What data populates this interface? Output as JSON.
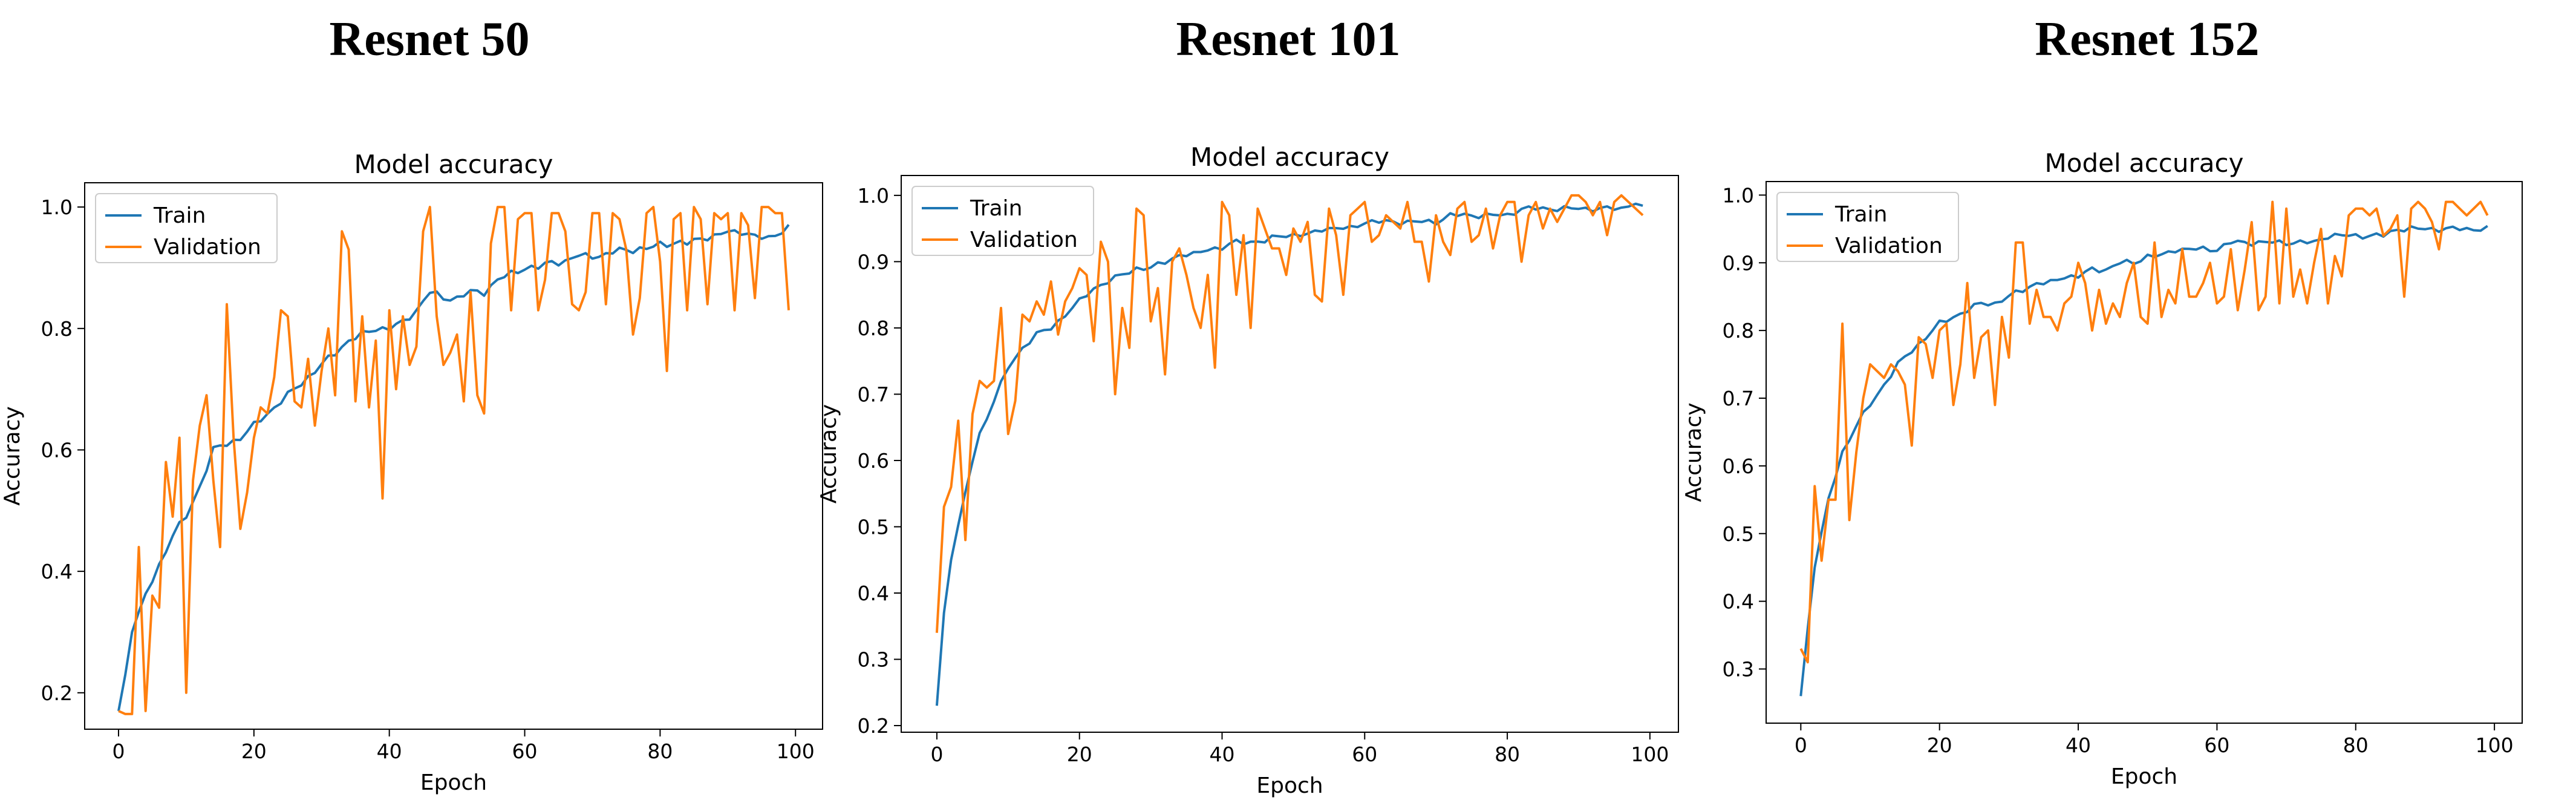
{
  "colors": {
    "train": "#1f77b4",
    "validation": "#ff7f0e"
  },
  "chart_data": [
    {
      "type": "line",
      "heading": "Resnet 50",
      "title": "Model accuracy",
      "xlabel": "Epoch",
      "ylabel": "Accuracy",
      "xlim": [
        -5,
        104
      ],
      "ylim": [
        0.14,
        1.04
      ],
      "xticks": [
        0,
        20,
        40,
        60,
        80,
        100
      ],
      "yticks": [
        0.2,
        0.4,
        0.6,
        0.8,
        1.0
      ],
      "ytick_labels": [
        "0.2",
        "0.4",
        "0.6",
        "0.8",
        "1.0"
      ],
      "legend": "upper-left",
      "series": [
        {
          "name": "Train",
          "anchors": [
            [
              0,
              0.17
            ],
            [
              1,
              0.23
            ],
            [
              2,
              0.3
            ],
            [
              4,
              0.36
            ],
            [
              6,
              0.41
            ],
            [
              8,
              0.46
            ],
            [
              10,
              0.49
            ],
            [
              12,
              0.54
            ],
            [
              14,
              0.6
            ],
            [
              16,
              0.61
            ],
            [
              18,
              0.62
            ],
            [
              20,
              0.64
            ],
            [
              22,
              0.66
            ],
            [
              24,
              0.68
            ],
            [
              26,
              0.7
            ],
            [
              28,
              0.72
            ],
            [
              30,
              0.74
            ],
            [
              32,
              0.76
            ],
            [
              34,
              0.78
            ],
            [
              36,
              0.79
            ],
            [
              38,
              0.8
            ],
            [
              40,
              0.8
            ],
            [
              42,
              0.81
            ],
            [
              44,
              0.83
            ],
            [
              46,
              0.86
            ],
            [
              48,
              0.85
            ],
            [
              50,
              0.85
            ],
            [
              52,
              0.86
            ],
            [
              54,
              0.86
            ],
            [
              56,
              0.88
            ],
            [
              58,
              0.89
            ],
            [
              60,
              0.9
            ],
            [
              62,
              0.9
            ],
            [
              64,
              0.91
            ],
            [
              66,
              0.91
            ],
            [
              68,
              0.92
            ],
            [
              70,
              0.92
            ],
            [
              72,
              0.92
            ],
            [
              74,
              0.93
            ],
            [
              76,
              0.93
            ],
            [
              78,
              0.93
            ],
            [
              80,
              0.94
            ],
            [
              82,
              0.94
            ],
            [
              84,
              0.94
            ],
            [
              86,
              0.95
            ],
            [
              88,
              0.95
            ],
            [
              90,
              0.96
            ],
            [
              92,
              0.96
            ],
            [
              94,
              0.95
            ],
            [
              96,
              0.95
            ],
            [
              98,
              0.96
            ],
            [
              99,
              0.965
            ]
          ],
          "jitter": 0.004
        },
        {
          "name": "Validation",
          "values": [
            0.17,
            0.165,
            0.165,
            0.44,
            0.17,
            0.36,
            0.34,
            0.58,
            0.49,
            0.62,
            0.2,
            0.55,
            0.64,
            0.69,
            0.55,
            0.44,
            0.84,
            0.62,
            0.47,
            0.53,
            0.62,
            0.67,
            0.66,
            0.72,
            0.83,
            0.82,
            0.68,
            0.67,
            0.75,
            0.64,
            0.73,
            0.8,
            0.69,
            0.96,
            0.93,
            0.68,
            0.82,
            0.67,
            0.78,
            0.52,
            0.83,
            0.7,
            0.82,
            0.74,
            0.77,
            0.96,
            1.0,
            0.82,
            0.74,
            0.76,
            0.79,
            0.68,
            0.86,
            0.69,
            0.66,
            0.94,
            1.0,
            1.0,
            0.83,
            0.98,
            0.99,
            0.99,
            0.83,
            0.88,
            0.99,
            0.99,
            0.96,
            0.84,
            0.83,
            0.86,
            0.99,
            0.99,
            0.84,
            0.99,
            0.98,
            0.93,
            0.79,
            0.85,
            0.99,
            1.0,
            0.91,
            0.73,
            0.98,
            0.99,
            0.83,
            1.0,
            0.98,
            0.84,
            0.99,
            0.98,
            0.99,
            0.83,
            0.99,
            0.97,
            0.85,
            1.0,
            1.0,
            0.99,
            0.99,
            0.83
          ]
        }
      ]
    },
    {
      "type": "line",
      "heading": "Resnet 101",
      "title": "Model accuracy",
      "xlabel": "Epoch",
      "ylabel": "Accuracy",
      "xlim": [
        -5,
        104
      ],
      "ylim": [
        0.19,
        1.03
      ],
      "xticks": [
        0,
        20,
        40,
        60,
        80,
        100
      ],
      "yticks": [
        0.2,
        0.3,
        0.4,
        0.5,
        0.6,
        0.7,
        0.8,
        0.9,
        1.0
      ],
      "ytick_labels": [
        "0.2",
        "0.3",
        "0.4",
        "0.5",
        "0.6",
        "0.7",
        "0.8",
        "0.9",
        "1.0"
      ],
      "legend": "upper-left",
      "series": [
        {
          "name": "Train",
          "anchors": [
            [
              0,
              0.23
            ],
            [
              1,
              0.37
            ],
            [
              2,
              0.45
            ],
            [
              3,
              0.5
            ],
            [
              4,
              0.55
            ],
            [
              5,
              0.6
            ],
            [
              6,
              0.64
            ],
            [
              8,
              0.69
            ],
            [
              10,
              0.74
            ],
            [
              12,
              0.77
            ],
            [
              14,
              0.79
            ],
            [
              16,
              0.8
            ],
            [
              18,
              0.82
            ],
            [
              20,
              0.84
            ],
            [
              22,
              0.86
            ],
            [
              24,
              0.87
            ],
            [
              26,
              0.88
            ],
            [
              28,
              0.89
            ],
            [
              30,
              0.89
            ],
            [
              32,
              0.9
            ],
            [
              34,
              0.91
            ],
            [
              36,
              0.91
            ],
            [
              38,
              0.92
            ],
            [
              40,
              0.92
            ],
            [
              42,
              0.93
            ],
            [
              44,
              0.93
            ],
            [
              46,
              0.93
            ],
            [
              48,
              0.94
            ],
            [
              50,
              0.94
            ],
            [
              52,
              0.94
            ],
            [
              54,
              0.95
            ],
            [
              56,
              0.95
            ],
            [
              58,
              0.95
            ],
            [
              60,
              0.96
            ],
            [
              62,
              0.96
            ],
            [
              64,
              0.96
            ],
            [
              66,
              0.96
            ],
            [
              68,
              0.96
            ],
            [
              70,
              0.96
            ],
            [
              72,
              0.97
            ],
            [
              74,
              0.97
            ],
            [
              76,
              0.97
            ],
            [
              78,
              0.97
            ],
            [
              80,
              0.97
            ],
            [
              82,
              0.98
            ],
            [
              84,
              0.98
            ],
            [
              86,
              0.98
            ],
            [
              88,
              0.98
            ],
            [
              90,
              0.98
            ],
            [
              92,
              0.98
            ],
            [
              94,
              0.98
            ],
            [
              96,
              0.98
            ],
            [
              98,
              0.99
            ],
            [
              99,
              0.98
            ]
          ],
          "jitter": 0.003
        },
        {
          "name": "Validation",
          "values": [
            0.34,
            0.53,
            0.56,
            0.66,
            0.48,
            0.67,
            0.72,
            0.71,
            0.72,
            0.83,
            0.64,
            0.69,
            0.82,
            0.81,
            0.84,
            0.82,
            0.87,
            0.79,
            0.84,
            0.86,
            0.89,
            0.88,
            0.78,
            0.93,
            0.9,
            0.7,
            0.83,
            0.77,
            0.98,
            0.97,
            0.81,
            0.86,
            0.73,
            0.9,
            0.92,
            0.88,
            0.83,
            0.8,
            0.88,
            0.74,
            0.99,
            0.97,
            0.85,
            0.94,
            0.8,
            0.98,
            0.95,
            0.92,
            0.92,
            0.88,
            0.95,
            0.93,
            0.96,
            0.85,
            0.84,
            0.98,
            0.94,
            0.85,
            0.97,
            0.98,
            0.99,
            0.93,
            0.94,
            0.97,
            0.96,
            0.95,
            0.99,
            0.93,
            0.93,
            0.87,
            0.97,
            0.93,
            0.91,
            0.98,
            0.99,
            0.93,
            0.94,
            0.98,
            0.92,
            0.97,
            0.99,
            0.99,
            0.9,
            0.97,
            0.99,
            0.95,
            0.98,
            0.96,
            0.98,
            1.0,
            1.0,
            0.99,
            0.97,
            0.99,
            0.94,
            0.99,
            1.0,
            0.99,
            0.98,
            0.97
          ]
        }
      ]
    },
    {
      "type": "line",
      "heading": "Resnet 152",
      "title": "Model accuracy",
      "xlabel": "Epoch",
      "ylabel": "Accuracy",
      "xlim": [
        -5,
        104
      ],
      "ylim": [
        0.22,
        1.02
      ],
      "xticks": [
        0,
        20,
        40,
        60,
        80,
        100
      ],
      "yticks": [
        0.3,
        0.4,
        0.5,
        0.6,
        0.7,
        0.8,
        0.9,
        1.0
      ],
      "ytick_labels": [
        "0.3",
        "0.4",
        "0.5",
        "0.6",
        "0.7",
        "0.8",
        "0.9",
        "1.0"
      ],
      "legend": "upper-left",
      "series": [
        {
          "name": "Train",
          "anchors": [
            [
              0,
              0.26
            ],
            [
              1,
              0.36
            ],
            [
              2,
              0.45
            ],
            [
              3,
              0.5
            ],
            [
              4,
              0.55
            ],
            [
              6,
              0.62
            ],
            [
              8,
              0.66
            ],
            [
              10,
              0.69
            ],
            [
              12,
              0.72
            ],
            [
              14,
              0.75
            ],
            [
              16,
              0.77
            ],
            [
              18,
              0.79
            ],
            [
              20,
              0.81
            ],
            [
              22,
              0.82
            ],
            [
              24,
              0.83
            ],
            [
              26,
              0.84
            ],
            [
              28,
              0.84
            ],
            [
              30,
              0.85
            ],
            [
              32,
              0.86
            ],
            [
              34,
              0.87
            ],
            [
              36,
              0.87
            ],
            [
              38,
              0.88
            ],
            [
              40,
              0.88
            ],
            [
              42,
              0.89
            ],
            [
              44,
              0.89
            ],
            [
              46,
              0.9
            ],
            [
              48,
              0.9
            ],
            [
              50,
              0.91
            ],
            [
              52,
              0.91
            ],
            [
              54,
              0.92
            ],
            [
              56,
              0.92
            ],
            [
              58,
              0.92
            ],
            [
              60,
              0.92
            ],
            [
              62,
              0.93
            ],
            [
              64,
              0.93
            ],
            [
              66,
              0.93
            ],
            [
              68,
              0.93
            ],
            [
              70,
              0.93
            ],
            [
              72,
              0.93
            ],
            [
              74,
              0.93
            ],
            [
              76,
              0.94
            ],
            [
              78,
              0.94
            ],
            [
              80,
              0.94
            ],
            [
              82,
              0.94
            ],
            [
              84,
              0.94
            ],
            [
              86,
              0.95
            ],
            [
              88,
              0.95
            ],
            [
              90,
              0.95
            ],
            [
              92,
              0.95
            ],
            [
              94,
              0.95
            ],
            [
              96,
              0.95
            ],
            [
              98,
              0.95
            ],
            [
              99,
              0.95
            ]
          ],
          "jitter": 0.003
        },
        {
          "name": "Validation",
          "values": [
            0.33,
            0.31,
            0.57,
            0.46,
            0.55,
            0.55,
            0.81,
            0.52,
            0.62,
            0.7,
            0.75,
            0.74,
            0.73,
            0.75,
            0.74,
            0.72,
            0.63,
            0.79,
            0.78,
            0.73,
            0.8,
            0.81,
            0.69,
            0.75,
            0.87,
            0.73,
            0.79,
            0.8,
            0.69,
            0.82,
            0.76,
            0.93,
            0.93,
            0.81,
            0.86,
            0.82,
            0.82,
            0.8,
            0.84,
            0.85,
            0.9,
            0.87,
            0.8,
            0.86,
            0.81,
            0.84,
            0.82,
            0.87,
            0.9,
            0.82,
            0.81,
            0.93,
            0.82,
            0.86,
            0.84,
            0.92,
            0.85,
            0.85,
            0.87,
            0.9,
            0.84,
            0.85,
            0.92,
            0.83,
            0.89,
            0.96,
            0.83,
            0.85,
            0.99,
            0.84,
            0.98,
            0.85,
            0.89,
            0.84,
            0.9,
            0.95,
            0.84,
            0.91,
            0.88,
            0.97,
            0.98,
            0.98,
            0.97,
            0.98,
            0.94,
            0.95,
            0.97,
            0.85,
            0.98,
            0.99,
            0.98,
            0.96,
            0.92,
            0.99,
            0.99,
            0.98,
            0.97,
            0.98,
            0.99,
            0.97
          ]
        }
      ]
    }
  ]
}
